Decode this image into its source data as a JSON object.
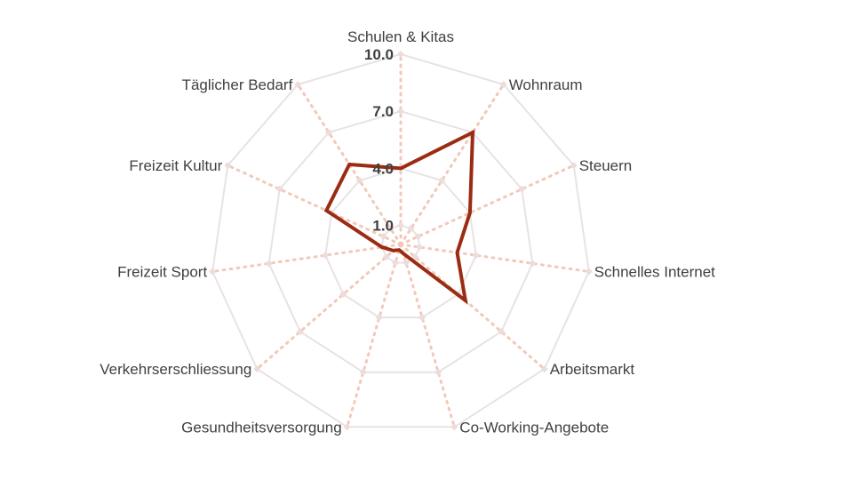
{
  "chart_data": {
    "type": "radar",
    "title": "",
    "categories": [
      "Schulen & Kitas",
      "Wohnraum",
      "Steuern",
      "Schnelles Internet",
      "Arbeitsmarkt",
      "Co-Working-Angebote",
      "Gesundheitsversorgung",
      "Verkehrserschliessung",
      "Freizeit Sport",
      "Freizeit Kultur",
      "Täglicher Bedarf"
    ],
    "series": [
      {
        "values": [
          4.0,
          7.0,
          4.0,
          3.0,
          4.5,
          0.5,
          0.3,
          0.5,
          1.0,
          4.3,
          5.0
        ]
      }
    ],
    "rlim": [
      0,
      10
    ],
    "ticks": [
      1,
      4,
      7,
      10
    ],
    "tick_labels": [
      "1.0",
      "4.0",
      "7.0",
      "10.0"
    ],
    "grid": true,
    "colors": {
      "series": "#9b2c14",
      "grid": "#e8e3e3",
      "spokes": "#f2c9b8",
      "markers": "#ecdcdc"
    }
  }
}
